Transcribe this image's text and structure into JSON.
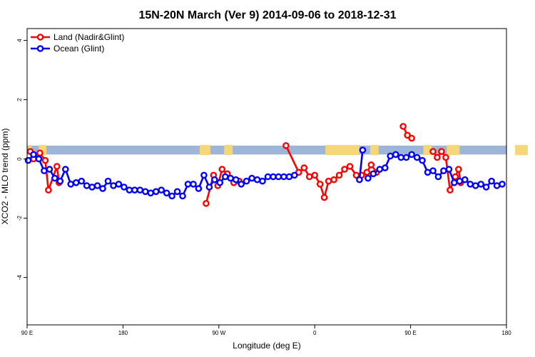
{
  "chart_data": {
    "type": "line",
    "title": "15N-20N March (Ver 9)   2014-09-06 to 2018-12-31",
    "xlabel": "Longitude (deg E)",
    "ylabel": "XCO2 - MLO trend (ppm)",
    "x_tick_labels": [
      "90 E",
      "180",
      "90 W",
      "0",
      "90 E",
      "180"
    ],
    "x_ticks": [
      90,
      180,
      270,
      360,
      450,
      540
    ],
    "xlim": [
      90,
      540
    ],
    "y_ticks": [
      -4,
      -2,
      0,
      2,
      4
    ],
    "ylim": [
      -5.6,
      4.4
    ],
    "legend_position": "top-left",
    "colors": {
      "land": "#ff0000",
      "ocean": "#0000ff",
      "band": "#9db5d8",
      "land_patch": "#f5d77a"
    },
    "band": {
      "y_low": 0.15,
      "y_high": 0.45
    },
    "land_patches": [
      [
        91,
        94
      ],
      [
        101,
        108
      ],
      [
        252,
        262
      ],
      [
        275,
        283
      ],
      [
        370,
        402
      ],
      [
        412,
        420
      ],
      [
        462,
        470
      ],
      [
        484,
        496
      ],
      [
        548,
        560
      ]
    ],
    "series": [
      {
        "name": "Land (Nadir&Glint)",
        "color": "#ff0000",
        "points": [
          [
            93,
            0.25
          ],
          [
            96,
            0.0
          ],
          [
            102,
            0.2
          ],
          [
            107,
            -0.05
          ],
          [
            110,
            -1.05
          ],
          [
            118,
            -0.25
          ],
          [
            120,
            -0.8
          ],
          [
            null,
            null
          ],
          [
            258,
            -1.5
          ],
          [
            265,
            -0.55
          ],
          [
            269,
            -0.9
          ],
          [
            273,
            -0.35
          ],
          [
            278,
            -0.5
          ],
          [
            284,
            -0.8
          ],
          [
            289,
            -0.75
          ],
          [
            null,
            null
          ],
          [
            333,
            0.45
          ],
          [
            345,
            -0.45
          ],
          [
            350,
            -0.3
          ],
          [
            355,
            -0.6
          ],
          [
            360,
            -0.55
          ],
          [
            365,
            -0.85
          ],
          [
            369,
            -1.3
          ],
          [
            373,
            -0.75
          ],
          [
            378,
            -0.7
          ],
          [
            383,
            -0.55
          ],
          [
            388,
            -0.35
          ],
          [
            393,
            -0.25
          ],
          [
            399,
            -0.55
          ],
          [
            404,
            -0.55
          ],
          [
            409,
            -0.45
          ],
          [
            413,
            -0.2
          ],
          [
            418,
            -0.45
          ],
          [
            null,
            null
          ],
          [
            443,
            1.1
          ],
          [
            447,
            0.8
          ],
          [
            451,
            0.7
          ],
          [
            null,
            null
          ],
          [
            471,
            0.25
          ],
          [
            475,
            0.05
          ],
          [
            479,
            0.25
          ],
          [
            483,
            0.05
          ],
          [
            487,
            -1.05
          ],
          [
            492,
            -0.6
          ],
          [
            495,
            -0.35
          ],
          [
            497,
            -0.8
          ]
        ]
      },
      {
        "name": "Ocean (Glint)",
        "color": "#0000ff",
        "points": [
          [
            91,
            -0.05
          ],
          [
            96,
            0.15
          ],
          [
            101,
            0.0
          ],
          [
            106,
            -0.4
          ],
          [
            111,
            -0.35
          ],
          [
            116,
            -0.65
          ],
          [
            121,
            -0.75
          ],
          [
            126,
            -0.35
          ],
          [
            131,
            -0.85
          ],
          [
            136,
            -0.8
          ],
          [
            141,
            -0.75
          ],
          [
            146,
            -0.9
          ],
          [
            151,
            -0.95
          ],
          [
            156,
            -0.9
          ],
          [
            161,
            -1.0
          ],
          [
            166,
            -0.75
          ],
          [
            171,
            -0.9
          ],
          [
            176,
            -0.85
          ],
          [
            181,
            -0.95
          ],
          [
            186,
            -1.05
          ],
          [
            191,
            -1.05
          ],
          [
            196,
            -1.05
          ],
          [
            201,
            -1.1
          ],
          [
            206,
            -1.15
          ],
          [
            211,
            -1.1
          ],
          [
            216,
            -1.05
          ],
          [
            221,
            -1.15
          ],
          [
            226,
            -1.25
          ],
          [
            231,
            -1.1
          ],
          [
            236,
            -1.25
          ],
          [
            241,
            -0.85
          ],
          [
            246,
            -0.85
          ],
          [
            251,
            -1.0
          ],
          [
            256,
            -0.55
          ],
          [
            261,
            -0.95
          ],
          [
            266,
            -0.7
          ],
          [
            271,
            -0.8
          ],
          [
            276,
            -0.6
          ],
          [
            281,
            -0.65
          ],
          [
            286,
            -0.7
          ],
          [
            291,
            -0.85
          ],
          [
            296,
            -0.75
          ],
          [
            301,
            -0.65
          ],
          [
            306,
            -0.7
          ],
          [
            311,
            -0.75
          ],
          [
            316,
            -0.6
          ],
          [
            321,
            -0.6
          ],
          [
            326,
            -0.6
          ],
          [
            331,
            -0.6
          ],
          [
            336,
            -0.6
          ],
          [
            341,
            -0.55
          ],
          [
            null,
            null
          ],
          [
            402,
            -0.7
          ],
          [
            405,
            0.3
          ],
          [
            null,
            null
          ],
          [
            410,
            -0.65
          ],
          [
            415,
            -0.5
          ],
          [
            421,
            -0.35
          ],
          [
            426,
            -0.3
          ],
          [
            431,
            0.1
          ],
          [
            436,
            0.15
          ],
          [
            441,
            0.05
          ],
          [
            446,
            0.05
          ],
          [
            451,
            0.15
          ],
          [
            456,
            0.05
          ],
          [
            461,
            -0.05
          ],
          [
            466,
            -0.45
          ],
          [
            471,
            -0.4
          ],
          [
            476,
            -0.6
          ],
          [
            481,
            -0.4
          ],
          [
            486,
            -0.35
          ],
          [
            491,
            -0.8
          ],
          [
            496,
            -0.75
          ],
          [
            501,
            -0.7
          ],
          [
            506,
            -0.85
          ],
          [
            511,
            -0.9
          ],
          [
            516,
            -0.85
          ],
          [
            521,
            -0.95
          ],
          [
            526,
            -0.75
          ],
          [
            531,
            -0.9
          ],
          [
            536,
            -0.85
          ]
        ]
      }
    ]
  }
}
